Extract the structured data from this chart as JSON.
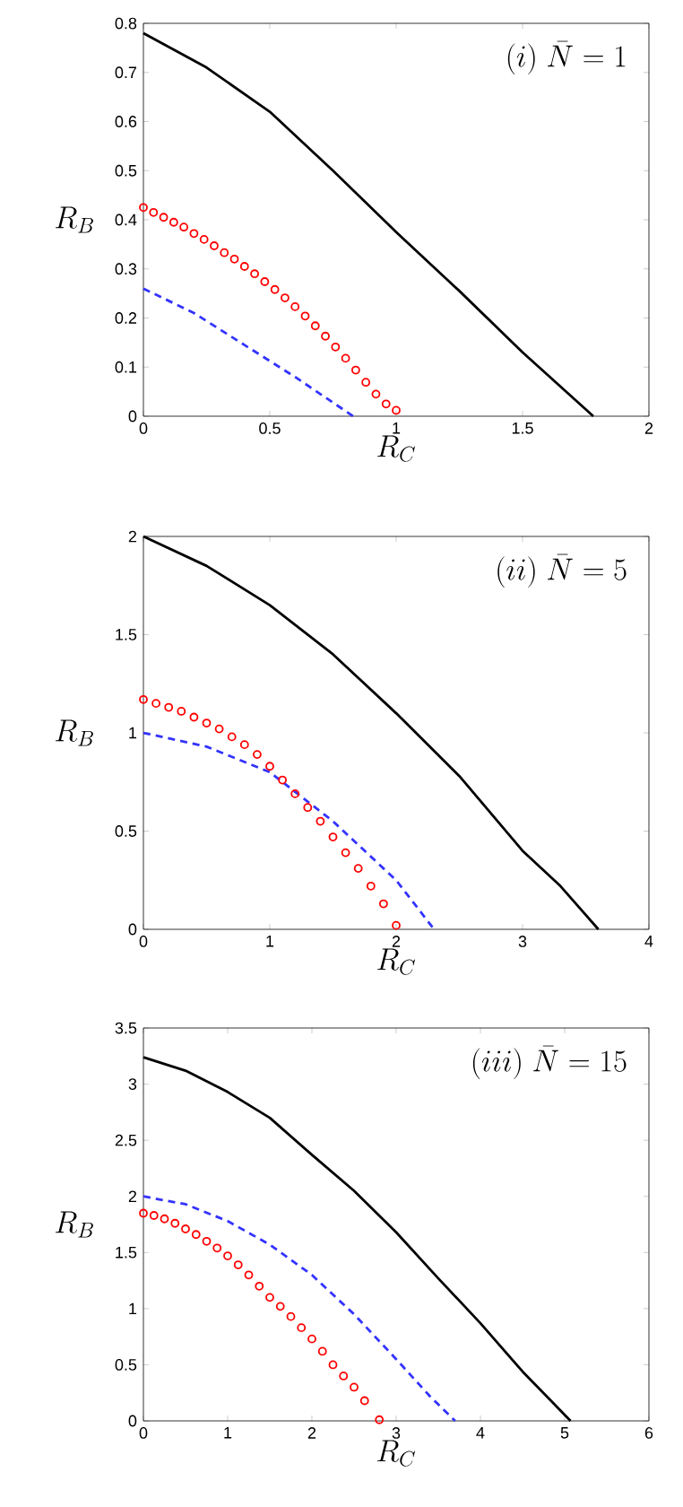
{
  "chart_data": [
    {
      "type": "line",
      "title": "(i)\\ \\bar{N}=1",
      "xlabel": "R_C",
      "ylabel": "R_B",
      "xlim": [
        0,
        2
      ],
      "ylim": [
        0,
        0.8
      ],
      "xticks": [
        0,
        0.5,
        1,
        1.5,
        2
      ],
      "yticks": [
        0,
        0.1,
        0.2,
        0.3,
        0.4,
        0.5,
        0.6,
        0.7,
        0.8
      ],
      "series": [
        {
          "type": "line",
          "color": "#000000",
          "line_style": "solid",
          "x": [
            0,
            0.25,
            0.5,
            0.75,
            1.0,
            1.25,
            1.5,
            1.78
          ],
          "values": [
            0.78,
            0.71,
            0.62,
            0.5,
            0.375,
            0.255,
            0.13,
            0
          ]
        },
        {
          "type": "scatter",
          "marker": "circle",
          "color": "#ff0000",
          "x": [
            0,
            0.04,
            0.08,
            0.12,
            0.16,
            0.2,
            0.24,
            0.28,
            0.32,
            0.36,
            0.4,
            0.44,
            0.48,
            0.52,
            0.56,
            0.6,
            0.64,
            0.68,
            0.72,
            0.76,
            0.8,
            0.84,
            0.88,
            0.92,
            0.96,
            1.0
          ],
          "values": [
            0.425,
            0.415,
            0.405,
            0.395,
            0.385,
            0.372,
            0.36,
            0.347,
            0.333,
            0.32,
            0.305,
            0.29,
            0.274,
            0.258,
            0.241,
            0.223,
            0.204,
            0.184,
            0.163,
            0.141,
            0.118,
            0.094,
            0.069,
            0.045,
            0.025,
            0.012
          ]
        },
        {
          "type": "line",
          "color": "#3333ff",
          "line_style": "dashed",
          "x": [
            0,
            0.2,
            0.4,
            0.6,
            0.83
          ],
          "values": [
            0.26,
            0.21,
            0.145,
            0.08,
            0
          ]
        }
      ]
    },
    {
      "type": "line",
      "title": "(ii)\\ \\bar{N}=5",
      "xlabel": "R_C",
      "ylabel": "R_B",
      "xlim": [
        0,
        4
      ],
      "ylim": [
        0,
        2
      ],
      "xticks": [
        0,
        1,
        2,
        3,
        4
      ],
      "yticks": [
        0,
        0.5,
        1,
        1.5,
        2
      ],
      "series": [
        {
          "type": "line",
          "color": "#000000",
          "line_style": "solid",
          "x": [
            0,
            0.5,
            1,
            1.5,
            2,
            2.5,
            3,
            3.3,
            3.6
          ],
          "values": [
            2,
            1.85,
            1.65,
            1.4,
            1.1,
            0.78,
            0.4,
            0.22,
            0
          ]
        },
        {
          "type": "scatter",
          "marker": "circle",
          "color": "#ff0000",
          "x": [
            0,
            0.1,
            0.2,
            0.3,
            0.4,
            0.5,
            0.6,
            0.7,
            0.8,
            0.9,
            1.0,
            1.1,
            1.2,
            1.3,
            1.4,
            1.5,
            1.6,
            1.7,
            1.8,
            1.9,
            2.0
          ],
          "values": [
            1.17,
            1.15,
            1.13,
            1.11,
            1.08,
            1.05,
            1.02,
            0.98,
            0.94,
            0.89,
            0.83,
            0.76,
            0.69,
            0.62,
            0.55,
            0.47,
            0.39,
            0.31,
            0.22,
            0.13,
            0.02
          ]
        },
        {
          "type": "line",
          "color": "#3333ff",
          "line_style": "dashed",
          "x": [
            0,
            0.5,
            1,
            1.5,
            2,
            2.3
          ],
          "values": [
            1.0,
            0.93,
            0.8,
            0.55,
            0.25,
            0
          ]
        }
      ]
    },
    {
      "type": "line",
      "title": "(iii)\\ \\bar{N}=15",
      "xlabel": "R_C",
      "ylabel": "R_B",
      "xlim": [
        0,
        6
      ],
      "ylim": [
        0,
        3.5
      ],
      "xticks": [
        0,
        1,
        2,
        3,
        4,
        5,
        6
      ],
      "yticks": [
        0,
        0.5,
        1,
        1.5,
        2,
        2.5,
        3,
        3.5
      ],
      "series": [
        {
          "type": "line",
          "color": "#000000",
          "line_style": "solid",
          "x": [
            0,
            0.5,
            1,
            1.5,
            2,
            2.5,
            3,
            3.5,
            4,
            4.5,
            5.07
          ],
          "values": [
            3.24,
            3.12,
            2.93,
            2.7,
            2.37,
            2.05,
            1.68,
            1.27,
            0.87,
            0.44,
            0
          ]
        },
        {
          "type": "scatter",
          "marker": "circle",
          "color": "#ff0000",
          "x": [
            0,
            0.125,
            0.25,
            0.375,
            0.5,
            0.625,
            0.75,
            0.875,
            1,
            1.125,
            1.25,
            1.375,
            1.5,
            1.625,
            1.75,
            1.875,
            2,
            2.125,
            2.25,
            2.375,
            2.5,
            2.625,
            2.8
          ],
          "values": [
            1.85,
            1.83,
            1.8,
            1.76,
            1.71,
            1.66,
            1.6,
            1.54,
            1.47,
            1.39,
            1.3,
            1.2,
            1.1,
            1.02,
            0.93,
            0.83,
            0.73,
            0.62,
            0.5,
            0.4,
            0.3,
            0.18,
            0.01
          ]
        },
        {
          "type": "line",
          "color": "#3333ff",
          "line_style": "dashed",
          "x": [
            0,
            0.5,
            1,
            1.5,
            2,
            2.5,
            3,
            3.4,
            3.7
          ],
          "values": [
            2.0,
            1.93,
            1.78,
            1.57,
            1.3,
            0.95,
            0.55,
            0.22,
            0
          ]
        }
      ]
    }
  ]
}
